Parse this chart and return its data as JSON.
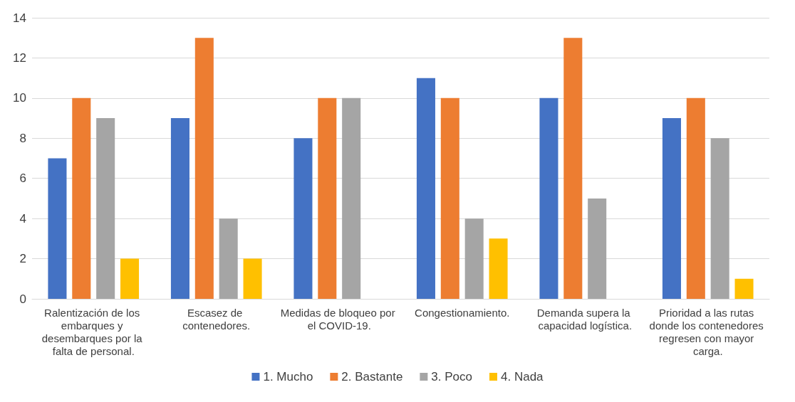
{
  "chart_data": {
    "type": "bar",
    "categories": [
      "Ralentización de los embarques y desembarques por la falta de personal.",
      "Escasez de contenedores.",
      "Medidas de bloqueo por el COVID-19.",
      "Congestionamiento.",
      "Demanda supera la capacidad logística.",
      "Prioridad a las rutas donde los contenedores regresen con mayor carga."
    ],
    "series": [
      {
        "name": "1. Mucho",
        "color": "#4472c4",
        "values": [
          7,
          9,
          8,
          11,
          10,
          9
        ]
      },
      {
        "name": "2. Bastante",
        "color": "#ed7d31",
        "values": [
          10,
          13,
          10,
          10,
          13,
          10
        ]
      },
      {
        "name": "3. Poco",
        "color": "#a5a5a5",
        "values": [
          9,
          4,
          10,
          4,
          5,
          8
        ]
      },
      {
        "name": "4. Nada",
        "color": "#ffc000",
        "values": [
          2,
          2,
          0,
          3,
          0,
          1
        ]
      }
    ],
    "ylim": [
      0,
      14
    ],
    "yticks": [
      0,
      2,
      4,
      6,
      8,
      10,
      12,
      14
    ],
    "grid": "y",
    "legend": "bottom"
  }
}
